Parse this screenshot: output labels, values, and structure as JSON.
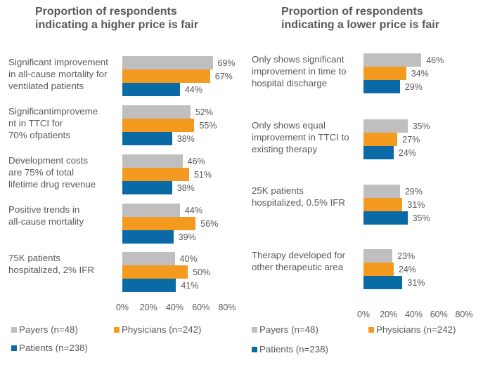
{
  "chart_data": [
    {
      "type": "bar",
      "orientation": "horizontal",
      "title": "Proportion of respondents indicating a higher price is fair",
      "categories": [
        "Significant improvement in all-cause mortality for ventilated patients",
        "Significantimprovement in TTCI for 70% ofpatients",
        "Development costs are 75% of total lifetime drug revenue",
        "Positive trends in all-cause mortality",
        "75K patients hospitalized, 2% IFR"
      ],
      "category_lines": [
        [
          "Significant improvement",
          "in all-cause mortality for",
          "ventilated patients"
        ],
        [
          "Significantimproveme",
          "nt in TTCI for",
          "70% ofpatients"
        ],
        [
          "Development costs",
          "are 75% of total",
          "lifetime drug revenue"
        ],
        [
          "Positive trends in",
          "all-cause mortality"
        ],
        [
          "75K patients",
          "hospitalized, 2% IFR"
        ]
      ],
      "series": [
        {
          "name": "Payers (n=48)",
          "color": "#bfbfbf",
          "values": [
            69,
            52,
            46,
            44,
            40
          ]
        },
        {
          "name": "Physicians (n=242)",
          "color": "#f39a1f",
          "values": [
            67,
            55,
            51,
            56,
            50
          ]
        },
        {
          "name": "Patients (n=238)",
          "color": "#0a6aa6",
          "values": [
            44,
            38,
            38,
            39,
            41
          ]
        }
      ],
      "xlim": [
        0,
        80
      ],
      "xticks": [
        "0%",
        "20%",
        "40%",
        "60%",
        "80%"
      ],
      "xlabel": "",
      "ylabel": "",
      "grid": false,
      "legend": "bottom"
    },
    {
      "type": "bar",
      "orientation": "horizontal",
      "title": "Proportion of respondents indicating a lower price is fair",
      "categories": [
        "Only shows significant improvement in time to hospital discharge",
        "Only shows equal improvement in TTCI to existing therapy",
        "25K patients hospitalized, 0.5% IFR",
        "Therapy developed for other therapeutic area"
      ],
      "category_lines": [
        [
          "Only shows significant",
          "improvement in time to",
          "hospital discharge"
        ],
        [
          "Only shows equal",
          "improvement in TTCI to",
          "existing therapy"
        ],
        [
          "25K patients",
          "hospitalized, 0.5% IFR"
        ],
        [
          "Therapy developed for",
          "other therapeutic area"
        ]
      ],
      "series": [
        {
          "name": "Payers (n=48)",
          "color": "#bfbfbf",
          "values": [
            46,
            35,
            29,
            23
          ]
        },
        {
          "name": "Physicians (n=242)",
          "color": "#f39a1f",
          "values": [
            34,
            27,
            31,
            24
          ]
        },
        {
          "name": "Patients (n=238)",
          "color": "#0a6aa6",
          "values": [
            29,
            24,
            35,
            31
          ]
        }
      ],
      "xlim": [
        0,
        80
      ],
      "xticks": [
        "0%",
        "20%",
        "40%",
        "60%",
        "80%"
      ],
      "xlabel": "",
      "ylabel": "",
      "grid": false,
      "legend": "bottom"
    }
  ],
  "titles": {
    "left": [
      "Proportion of respondents",
      "indicating a higher price is fair"
    ],
    "right": [
      "Proportion of respondents",
      "indicating a lower price is fair"
    ]
  }
}
